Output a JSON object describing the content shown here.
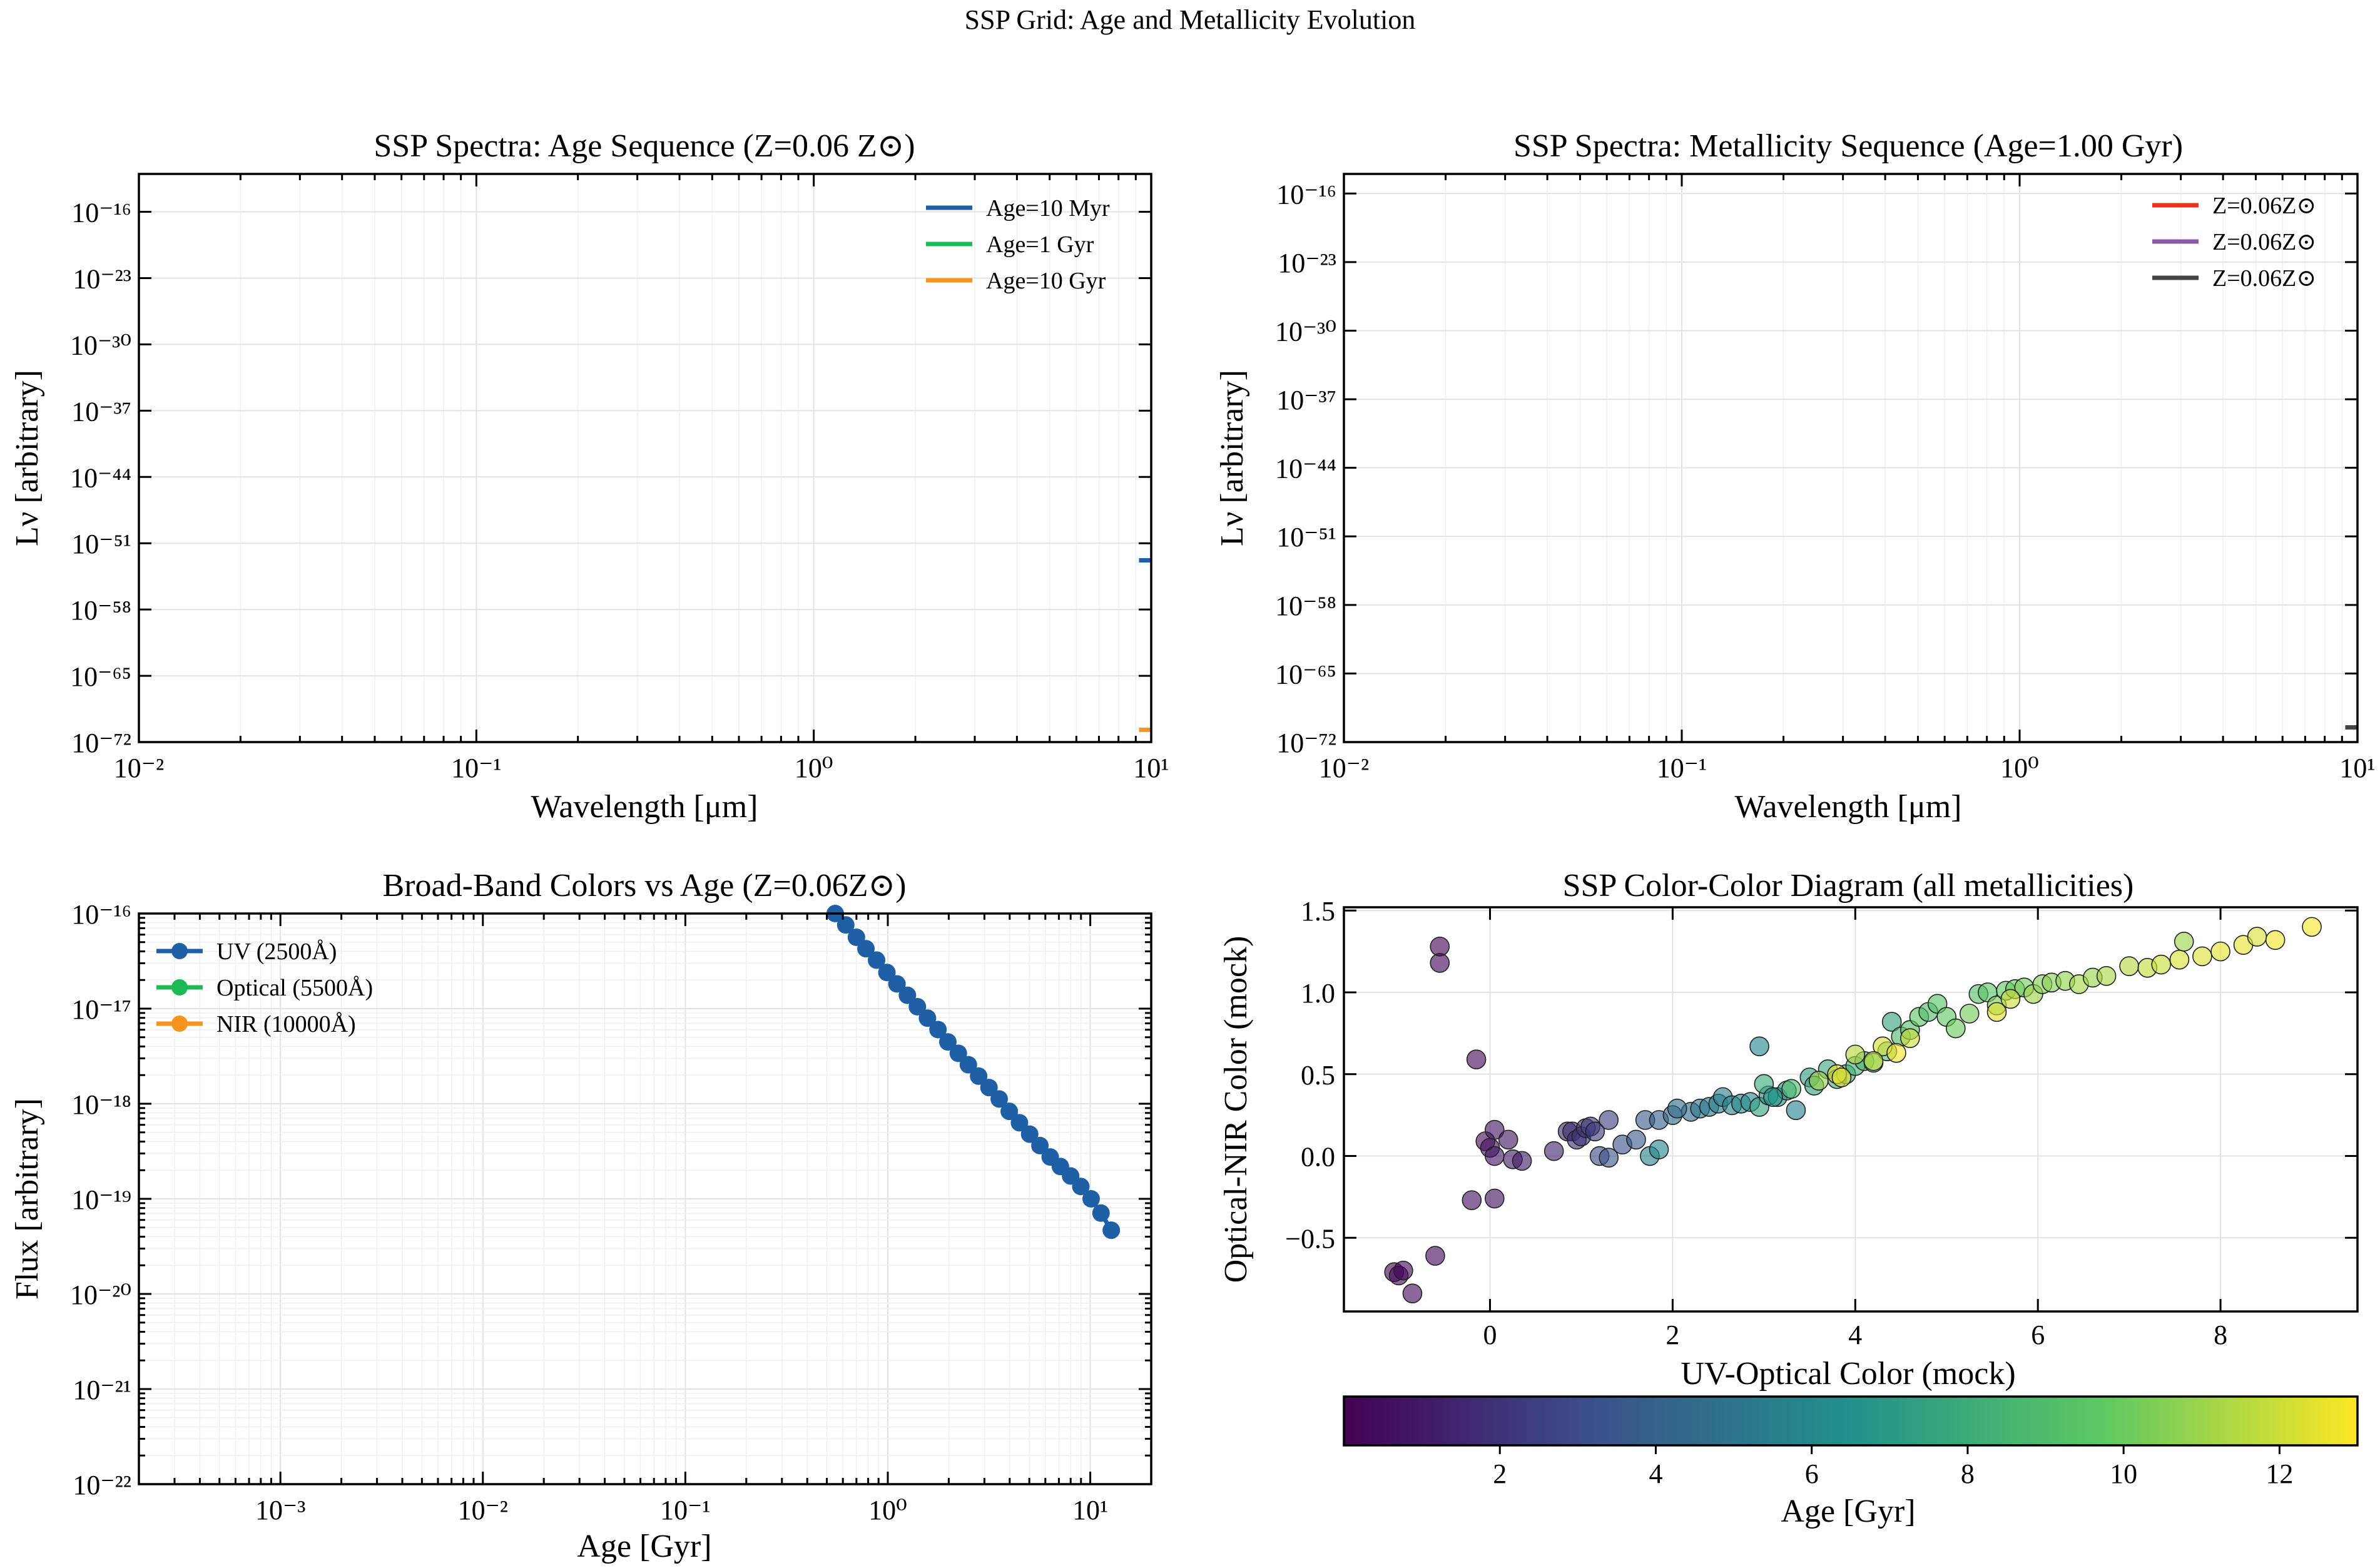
{
  "figure": {
    "suptitle": "SSP Grid: Age and Metallicity Evolution"
  },
  "chart_data": [
    {
      "id": "age_sequence",
      "type": "line",
      "title": "SSP Spectra: Age Sequence (Z=0.06 Z⊙)",
      "xlabel": "Wavelength [μm]",
      "ylabel": "Lν [arbitrary]",
      "xscale": "log",
      "yscale": "log",
      "xlim": [
        0.01,
        10
      ],
      "ylim_exp": [
        -72,
        -12
      ],
      "xticks": [
        "10⁻²",
        "10⁻¹",
        "10⁰",
        "10¹"
      ],
      "yticks_exp": [
        -72,
        -65,
        -58,
        -51,
        -44,
        -37,
        -30,
        -23,
        -16
      ],
      "grid": true,
      "legend_position": "top-right",
      "series": [
        {
          "name": "Age=10 Myr",
          "color": "#1f5fa6",
          "x": [
            9.2,
            10
          ],
          "y_exp": [
            -52.8,
            -52.8
          ]
        },
        {
          "name": "Age=1 Gyr",
          "color": "#1db954",
          "x": [],
          "y_exp": []
        },
        {
          "name": "Age=10 Gyr",
          "color": "#f7941d",
          "x": [
            9.2,
            10
          ],
          "y_exp": [
            -70.7,
            -70.7
          ]
        }
      ]
    },
    {
      "id": "metallicity_sequence",
      "type": "line",
      "title": "SSP Spectra: Metallicity Sequence (Age=1.00 Gyr)",
      "xlabel": "Wavelength [μm]",
      "ylabel": "Lν [arbitrary]",
      "xscale": "log",
      "yscale": "log",
      "xlim": [
        0.01,
        10
      ],
      "ylim_exp": [
        -72,
        -14
      ],
      "xticks": [
        "10⁻²",
        "10⁻¹",
        "10⁰",
        "10¹"
      ],
      "yticks_exp": [
        -72,
        -65,
        -58,
        -51,
        -44,
        -37,
        -30,
        -23,
        -16
      ],
      "grid": true,
      "legend_position": "top-right",
      "series": [
        {
          "name": "Z=0.06Z⊙",
          "color": "#e8321a",
          "x": [],
          "y_exp": []
        },
        {
          "name": "Z=0.06Z⊙",
          "color": "#8a5ca8",
          "x": [],
          "y_exp": []
        },
        {
          "name": "Z=0.06Z⊙",
          "color": "#444444",
          "x": [
            9.2,
            10
          ],
          "y_exp": [
            -70.5,
            -70.5
          ]
        }
      ]
    },
    {
      "id": "broadband_vs_age",
      "type": "line",
      "title": "Broad-Band Colors vs Age (Z=0.06Z⊙)",
      "xlabel": "Age [Gyr]",
      "ylabel": "Flux [arbitrary]",
      "xscale": "log",
      "yscale": "log",
      "xlim": [
        0.0002,
        20
      ],
      "ylim_exp": [
        -22,
        -16
      ],
      "xticks": [
        "10⁻³",
        "10⁻²",
        "10⁻¹",
        "10⁰",
        "10¹"
      ],
      "yticks_exp": [
        -22,
        -21,
        -20,
        -19,
        -18,
        -17,
        -16
      ],
      "grid": true,
      "legend_position": "top-left",
      "series": [
        {
          "name": "UV (2500Å)",
          "color": "#1f5fa6",
          "x": [
            0.55,
            0.62,
            0.7,
            0.78,
            0.88,
            0.99,
            1.11,
            1.25,
            1.4,
            1.57,
            1.77,
            1.98,
            2.23,
            2.5,
            2.81,
            3.16,
            3.55,
            3.98,
            4.47,
            5.02,
            5.64,
            6.34,
            7.12,
            8.0,
            8.98,
            10.1,
            11.3,
            12.7
          ],
          "y_exp": [
            -16.0,
            -16.12,
            -16.25,
            -16.37,
            -16.49,
            -16.62,
            -16.74,
            -16.86,
            -16.98,
            -17.1,
            -17.22,
            -17.35,
            -17.47,
            -17.59,
            -17.71,
            -17.83,
            -17.95,
            -18.08,
            -18.2,
            -18.32,
            -18.44,
            -18.56,
            -18.66,
            -18.76,
            -18.87,
            -19.0,
            -19.15,
            -19.33
          ]
        },
        {
          "name": "Optical (5500Å)",
          "color": "#1db954",
          "x": [],
          "y_exp": []
        },
        {
          "name": "NIR (10000Å)",
          "color": "#f7941d",
          "x": [],
          "y_exp": []
        }
      ]
    },
    {
      "id": "color_color",
      "type": "scatter",
      "title": "SSP Color-Color Diagram (all metallicities)",
      "xlabel": "UV-Optical Color (mock)",
      "ylabel": "Optical-NIR Color (mock)",
      "xlim": [
        -1.6,
        9.5
      ],
      "ylim": [
        -0.95,
        1.52
      ],
      "xticks": [
        0,
        2,
        4,
        6,
        8
      ],
      "yticks": [
        -0.5,
        0.0,
        0.5,
        1.0,
        1.5
      ],
      "xtick_labels": [
        "0",
        "2",
        "4",
        "6",
        "8"
      ],
      "ytick_labels": [
        "−0.5",
        "0.0",
        "0.5",
        "1.0",
        "1.5"
      ],
      "grid": true,
      "colorbar": {
        "label": "Age [Gyr]",
        "colormap": "viridis",
        "range": [
          0,
          13
        ],
        "ticks": [
          2,
          4,
          6,
          8,
          10,
          12
        ],
        "tick_labels": [
          "2",
          "4",
          "6",
          "8",
          "10",
          "12"
        ]
      },
      "points": [
        [
          -1.05,
          -0.71,
          0.1
        ],
        [
          -1.0,
          -0.73,
          0.2
        ],
        [
          -0.95,
          -0.7,
          0.3
        ],
        [
          -0.85,
          -0.84,
          0.4
        ],
        [
          -0.6,
          -0.61,
          0.3
        ],
        [
          -0.55,
          1.28,
          0.1
        ],
        [
          -0.55,
          1.18,
          0.2
        ],
        [
          -0.15,
          0.59,
          0.4
        ],
        [
          -0.2,
          -0.27,
          0.6
        ],
        [
          0.05,
          -0.26,
          0.7
        ],
        [
          -0.05,
          0.09,
          0.5
        ],
        [
          0.0,
          0.05,
          0.6
        ],
        [
          0.05,
          0.16,
          0.8
        ],
        [
          0.05,
          0.0,
          0.9
        ],
        [
          0.2,
          0.1,
          0.9
        ],
        [
          0.25,
          -0.02,
          1.0
        ],
        [
          0.35,
          -0.03,
          1.1
        ],
        [
          0.7,
          0.03,
          1.4
        ],
        [
          0.85,
          0.15,
          1.6
        ],
        [
          0.9,
          0.15,
          1.7
        ],
        [
          0.95,
          0.1,
          1.8
        ],
        [
          1.0,
          0.12,
          2.0
        ],
        [
          1.05,
          0.17,
          2.1
        ],
        [
          1.1,
          0.18,
          2.2
        ],
        [
          1.15,
          0.15,
          2.3
        ],
        [
          1.3,
          0.22,
          2.5
        ],
        [
          1.2,
          0.0,
          3.0
        ],
        [
          1.3,
          -0.01,
          3.4
        ],
        [
          1.45,
          0.07,
          3.3
        ],
        [
          1.6,
          0.1,
          3.6
        ],
        [
          1.7,
          0.22,
          3.8
        ],
        [
          1.85,
          0.22,
          4.0
        ],
        [
          1.75,
          0.0,
          5.8
        ],
        [
          1.85,
          0.04,
          6.0
        ],
        [
          2.0,
          0.25,
          4.4
        ],
        [
          2.2,
          0.27,
          4.7
        ],
        [
          2.3,
          0.29,
          5.0
        ],
        [
          2.4,
          0.3,
          5.2
        ],
        [
          2.5,
          0.32,
          5.4
        ],
        [
          2.55,
          0.36,
          5.5
        ],
        [
          2.65,
          0.31,
          5.8
        ],
        [
          2.75,
          0.32,
          6.0
        ],
        [
          2.85,
          0.33,
          6.2
        ],
        [
          2.95,
          0.67,
          6.0
        ],
        [
          2.95,
          0.3,
          7.4
        ],
        [
          3.05,
          0.37,
          6.4
        ],
        [
          3.15,
          0.36,
          6.6
        ],
        [
          3.25,
          0.4,
          6.9
        ],
        [
          3.35,
          0.28,
          5.8
        ],
        [
          3.5,
          0.48,
          7.2
        ],
        [
          3.55,
          0.43,
          7.5
        ],
        [
          3.7,
          0.53,
          7.7
        ],
        [
          3.8,
          0.47,
          8.0
        ],
        [
          3.9,
          0.5,
          8.2
        ],
        [
          4.0,
          0.55,
          8.4
        ],
        [
          4.1,
          0.58,
          8.6
        ],
        [
          4.2,
          0.57,
          9.0
        ],
        [
          4.35,
          0.64,
          9.2
        ],
        [
          4.4,
          0.82,
          7.5
        ],
        [
          4.5,
          0.73,
          8.9
        ],
        [
          4.6,
          0.77,
          9.4
        ],
        [
          4.7,
          0.85,
          9.6
        ],
        [
          4.8,
          0.88,
          9.0
        ],
        [
          4.9,
          0.93,
          9.3
        ],
        [
          5.0,
          0.85,
          9.7
        ],
        [
          5.1,
          0.78,
          10.0
        ],
        [
          5.25,
          0.87,
          10.2
        ],
        [
          5.35,
          0.99,
          9.2
        ],
        [
          5.45,
          1.0,
          9.5
        ],
        [
          5.55,
          0.92,
          10.4
        ],
        [
          5.65,
          1.01,
          9.8
        ],
        [
          5.75,
          1.02,
          10.0
        ],
        [
          5.85,
          1.03,
          10.2
        ],
        [
          5.95,
          0.99,
          11.0
        ],
        [
          6.05,
          1.05,
          10.5
        ],
        [
          6.15,
          1.06,
          10.6
        ],
        [
          6.3,
          1.07,
          10.8
        ],
        [
          6.45,
          1.05,
          11.2
        ],
        [
          6.6,
          1.09,
          11.0
        ],
        [
          6.75,
          1.1,
          11.3
        ],
        [
          7.0,
          1.16,
          11.5
        ],
        [
          7.2,
          1.15,
          11.8
        ],
        [
          7.35,
          1.17,
          12.0
        ],
        [
          7.55,
          1.2,
          12.2
        ],
        [
          7.6,
          1.31,
          11.0
        ],
        [
          7.8,
          1.22,
          12.3
        ],
        [
          8.0,
          1.25,
          12.5
        ],
        [
          8.25,
          1.29,
          12.6
        ],
        [
          8.4,
          1.34,
          12.2
        ],
        [
          8.6,
          1.32,
          12.8
        ],
        [
          9.0,
          1.4,
          12.9
        ],
        [
          4.0,
          0.62,
          11.5
        ],
        [
          4.3,
          0.67,
          12.2
        ],
        [
          3.8,
          0.5,
          12.6
        ],
        [
          4.2,
          0.58,
          11.9
        ],
        [
          4.6,
          0.72,
          12.0
        ],
        [
          3.6,
          0.46,
          11.0
        ],
        [
          5.55,
          0.88,
          12.4
        ],
        [
          5.7,
          0.96,
          12.0
        ],
        [
          3.85,
          0.48,
          12.5
        ],
        [
          4.45,
          0.63,
          12.8
        ],
        [
          3.3,
          0.41,
          9.0
        ],
        [
          2.05,
          0.29,
          4.6
        ],
        [
          3.0,
          0.44,
          7.8
        ],
        [
          3.1,
          0.36,
          6.7
        ]
      ]
    }
  ]
}
